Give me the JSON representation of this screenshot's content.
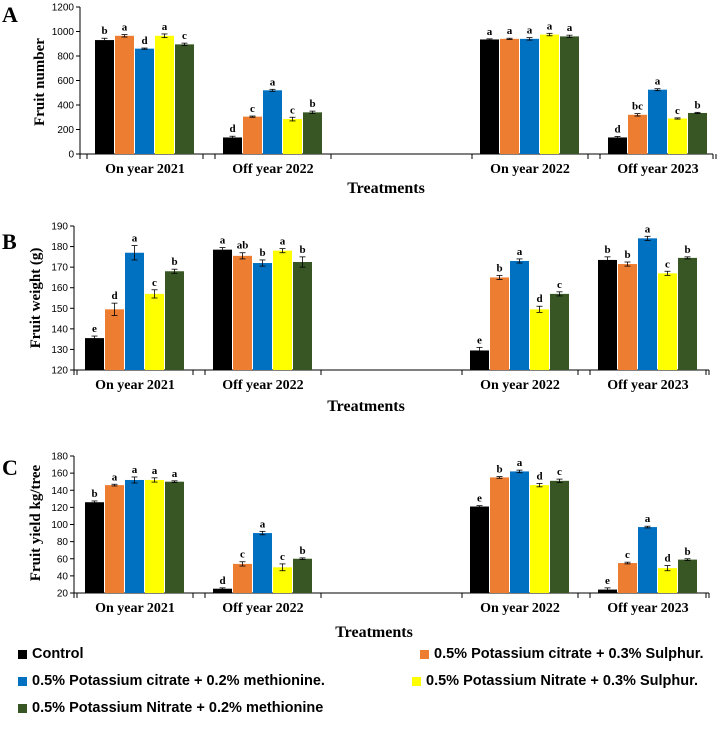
{
  "colors": {
    "Control": "#000000",
    "PC_S": "#ED7D31",
    "PC_M": "#0070C0",
    "PN_S": "#FFFF00",
    "PN_M": "#375623"
  },
  "legend": {
    "items": [
      {
        "key": "Control",
        "label": "Control"
      },
      {
        "key": "PC_S",
        "label": "0.5% Potassium citrate + 0.3% Sulphur."
      },
      {
        "key": "PC_M",
        "label": "0.5% Potassium citrate + 0.2% methionine."
      },
      {
        "key": "PN_S",
        "label": "0.5% Potassium Nitrate + 0.3% Sulphur."
      },
      {
        "key": "PN_M",
        "label": "0.5% Potassium Nitrate + 0.2% methionine"
      }
    ]
  },
  "chart_data": [
    {
      "panel": "A",
      "type": "bar",
      "ylabel": "Fruit number",
      "xlabel": "Treatments",
      "ylim": [
        0,
        1200
      ],
      "yticks": [
        0,
        200,
        400,
        600,
        800,
        1000,
        1200
      ],
      "categories": [
        "On year 2021",
        "Off year 2022",
        "On year 2022",
        "Off year 2023"
      ],
      "series": [
        {
          "key": "Control",
          "values": [
            930,
            135,
            935,
            135
          ],
          "errors": [
            15,
            10,
            5,
            8
          ],
          "letters": [
            "b",
            "d",
            "a",
            "d"
          ]
        },
        {
          "key": "PC_S",
          "values": [
            965,
            305,
            940,
            320
          ],
          "errors": [
            10,
            5,
            5,
            10
          ],
          "letters": [
            "a",
            "c",
            "a",
            "bc"
          ]
        },
        {
          "key": "PC_M",
          "values": [
            860,
            520,
            940,
            525
          ],
          "errors": [
            5,
            8,
            10,
            8
          ],
          "letters": [
            "d",
            "a",
            "a",
            "a"
          ]
        },
        {
          "key": "PN_S",
          "values": [
            965,
            285,
            975,
            290
          ],
          "errors": [
            15,
            15,
            10,
            5
          ],
          "letters": [
            "a",
            "c",
            "a",
            "c"
          ]
        },
        {
          "key": "PN_M",
          "values": [
            895,
            340,
            960,
            335
          ],
          "errors": [
            10,
            10,
            10,
            5
          ],
          "letters": [
            "c",
            "b",
            "a",
            "b"
          ]
        }
      ]
    },
    {
      "panel": "B",
      "type": "bar",
      "ylabel": "Fruit weight (g)",
      "xlabel": "Treatments",
      "ylim": [
        120,
        190
      ],
      "yticks": [
        120,
        130,
        140,
        150,
        160,
        170,
        180,
        190
      ],
      "categories": [
        "On year 2021",
        "Off year 2022",
        "On year 2022",
        "Off year 2023"
      ],
      "series": [
        {
          "key": "Control",
          "values": [
            135.5,
            178.5,
            129.5,
            173.5
          ],
          "errors": [
            1,
            1,
            1.5,
            1.5
          ],
          "letters": [
            "e",
            "a",
            "e",
            "b"
          ]
        },
        {
          "key": "PC_S",
          "values": [
            149.5,
            175.5,
            165,
            171.5
          ],
          "errors": [
            3,
            1.5,
            1,
            1
          ],
          "letters": [
            "d",
            "ab",
            "b",
            "b"
          ]
        },
        {
          "key": "PC_M",
          "values": [
            177,
            172,
            173,
            184
          ],
          "errors": [
            3.5,
            1.5,
            1,
            1
          ],
          "letters": [
            "a",
            "b",
            "a",
            "a"
          ]
        },
        {
          "key": "PN_S",
          "values": [
            157,
            178,
            149.5,
            167
          ],
          "errors": [
            2,
            1,
            1.5,
            1
          ],
          "letters": [
            "c",
            "a",
            "d",
            "c"
          ]
        },
        {
          "key": "PN_M",
          "values": [
            168,
            172.5,
            157,
            174.5
          ],
          "errors": [
            1,
            2.5,
            1,
            0.5
          ],
          "letters": [
            "b",
            "b",
            "c",
            "b"
          ]
        }
      ]
    },
    {
      "panel": "C",
      "type": "bar",
      "ylabel": "Fruit yield kg/tree",
      "xlabel": "Treatments",
      "ylim": [
        20,
        180
      ],
      "yticks": [
        20,
        40,
        60,
        80,
        100,
        120,
        140,
        160,
        180
      ],
      "categories": [
        "On year 2021",
        "Off year 2022",
        "On year 2022",
        "Off year 2023"
      ],
      "series": [
        {
          "key": "Control",
          "values": [
            126,
            25,
            121,
            24
          ],
          "errors": [
            1.5,
            1,
            1,
            2
          ],
          "letters": [
            "b",
            "d",
            "e",
            "e"
          ]
        },
        {
          "key": "PC_S",
          "values": [
            146,
            54,
            155,
            55
          ],
          "errors": [
            1,
            2.5,
            1,
            1
          ],
          "letters": [
            "a",
            "c",
            "b",
            "c"
          ]
        },
        {
          "key": "PC_M",
          "values": [
            152,
            90,
            162,
            97
          ],
          "errors": [
            3.5,
            2,
            1.5,
            1
          ],
          "letters": [
            "a",
            "a",
            "a",
            "a"
          ]
        },
        {
          "key": "PN_S",
          "values": [
            152,
            50,
            146,
            49
          ],
          "errors": [
            2.5,
            4,
            2,
            3
          ],
          "letters": [
            "a",
            "c",
            "d",
            "d"
          ]
        },
        {
          "key": "PN_M",
          "values": [
            150,
            60,
            151,
            59
          ],
          "errors": [
            1,
            1,
            2,
            1
          ],
          "letters": [
            "a",
            "b",
            "c",
            "b"
          ]
        }
      ]
    }
  ]
}
